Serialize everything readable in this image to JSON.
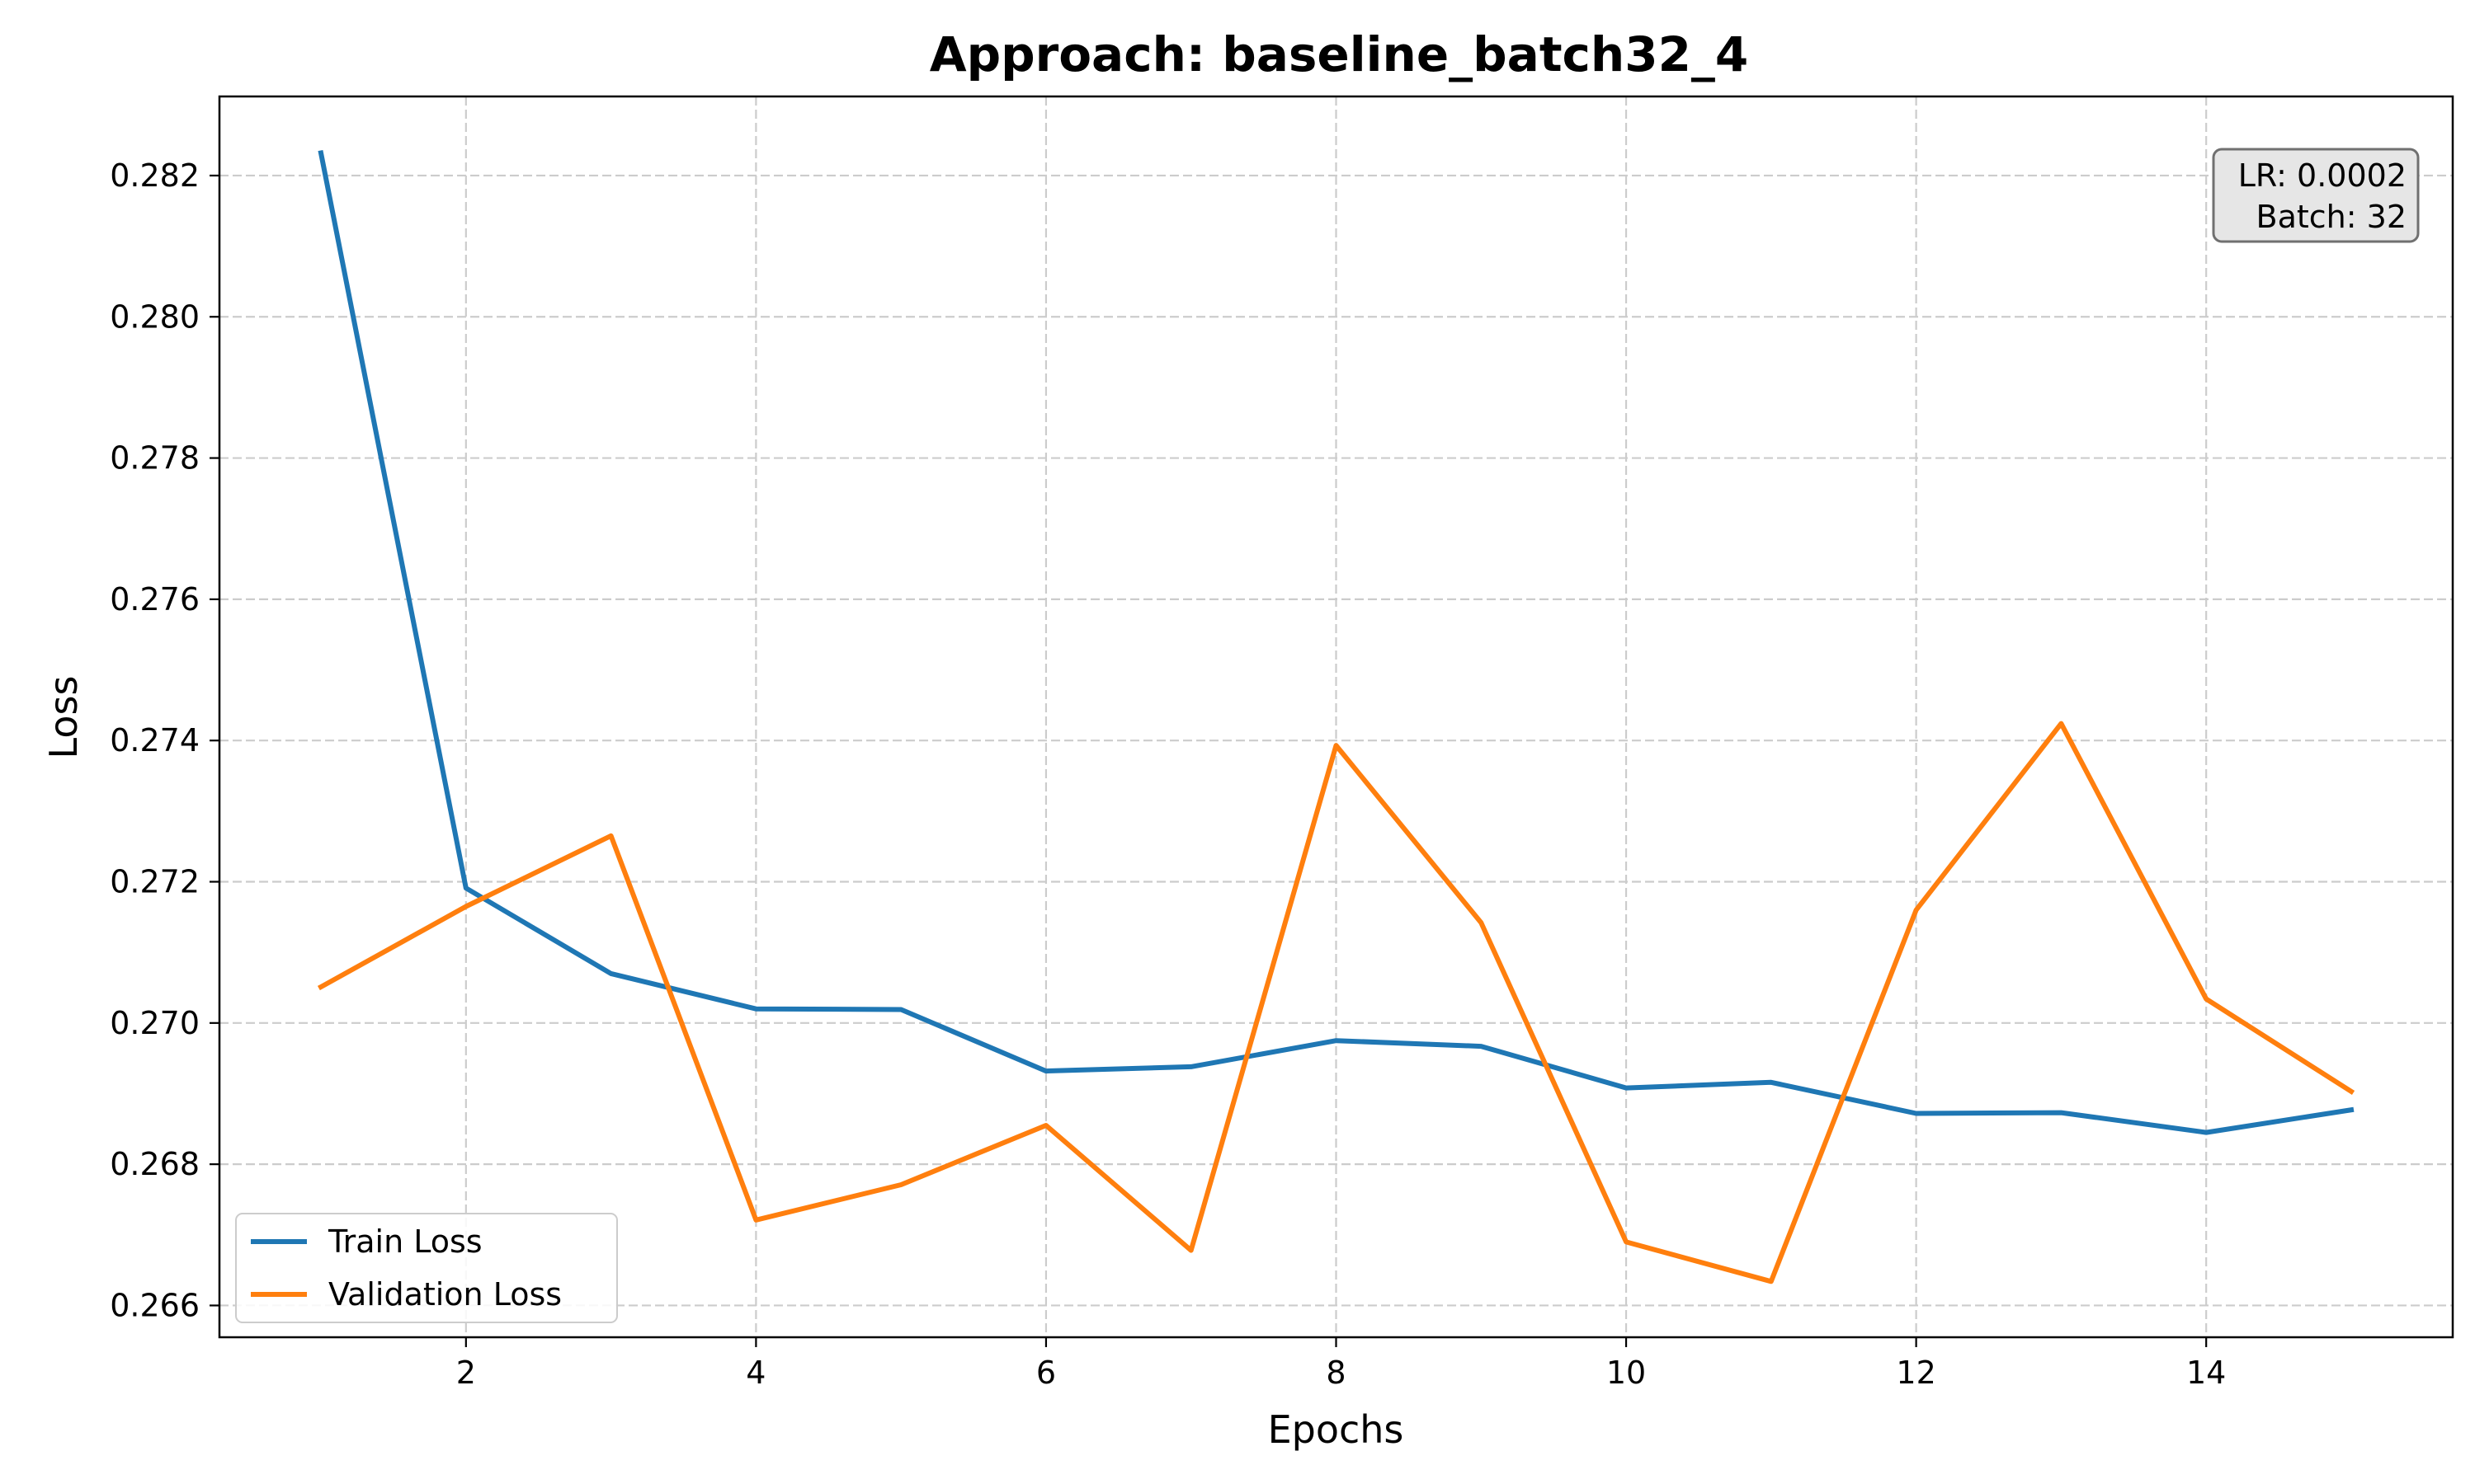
{
  "chart_data": {
    "type": "line",
    "title": "Approach: baseline_batch32_4",
    "xlabel": "Epochs",
    "ylabel": "Loss",
    "xlim": [
      0.3,
      15.7
    ],
    "ylim": [
      0.26555,
      0.28312
    ],
    "xticks": [
      2,
      4,
      6,
      8,
      10,
      12,
      14
    ],
    "xtick_labels": [
      "2",
      "4",
      "6",
      "8",
      "10",
      "12",
      "14"
    ],
    "yticks": [
      0.266,
      0.268,
      0.27,
      0.272,
      0.274,
      0.276,
      0.278,
      0.28,
      0.282
    ],
    "ytick_labels": [
      "0.266",
      "0.268",
      "0.270",
      "0.272",
      "0.274",
      "0.276",
      "0.278",
      "0.280",
      "0.282"
    ],
    "grid": true,
    "legend_position": "lower-left",
    "x": [
      1,
      2,
      3,
      4,
      5,
      6,
      7,
      8,
      9,
      10,
      11,
      12,
      13,
      14,
      15
    ],
    "series": [
      {
        "name": "Train Loss",
        "color": "#1f77b4",
        "values": [
          0.28232,
          0.27191,
          0.2707,
          0.2702,
          0.27019,
          0.26932,
          0.26938,
          0.26975,
          0.26967,
          0.26908,
          0.26916,
          0.26872,
          0.26873,
          0.26845,
          0.26877
        ]
      },
      {
        "name": "Validation Loss",
        "color": "#ff7f0e",
        "values": [
          0.27051,
          0.27165,
          0.27265,
          0.26721,
          0.26771,
          0.26855,
          0.26678,
          0.27393,
          0.27142,
          0.2669,
          0.26634,
          0.2716,
          0.27424,
          0.27034,
          0.26903
        ]
      }
    ],
    "annotation": {
      "lines": [
        "LR: 0.0002",
        "Batch: 32"
      ],
      "position": "top-right"
    }
  }
}
